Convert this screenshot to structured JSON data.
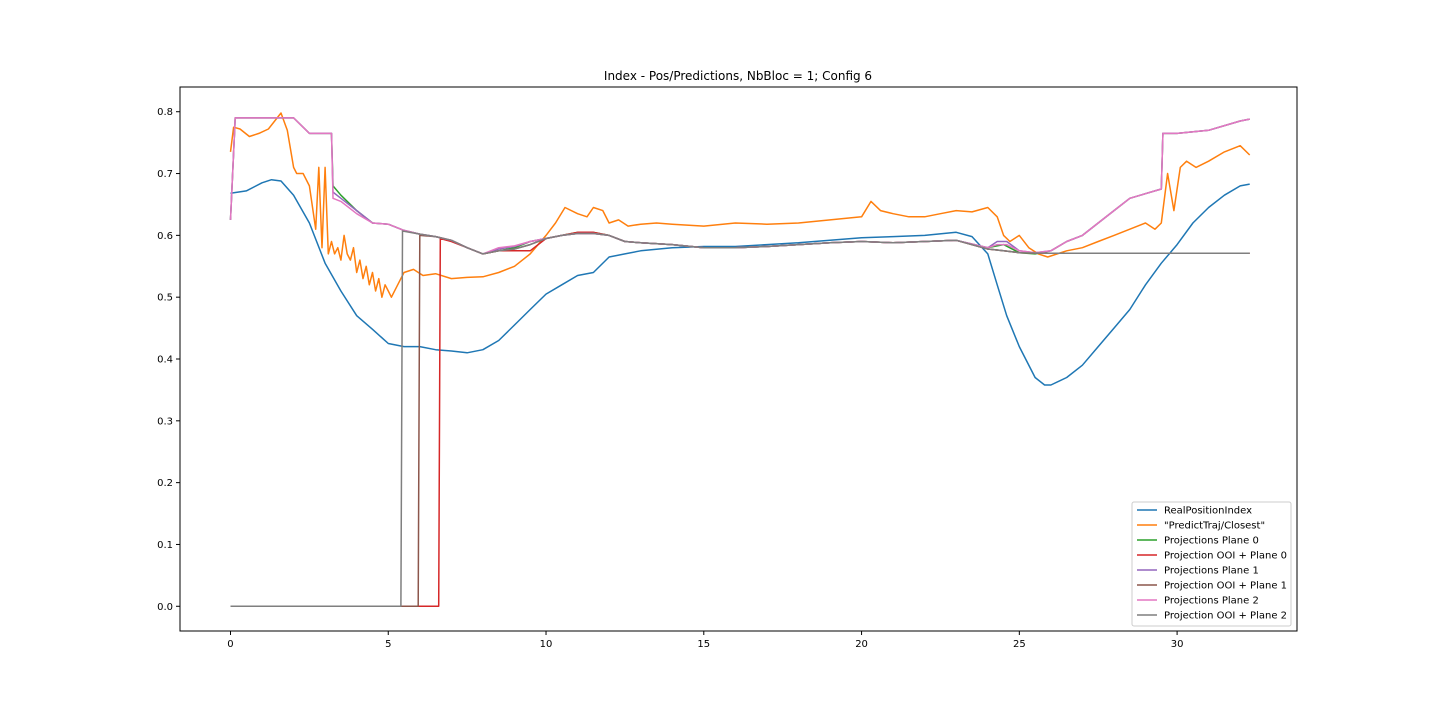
{
  "chart_data": {
    "type": "line",
    "title": "Index - Pos/Predictions, NbBloc = 1; Config 6",
    "xlabel": "",
    "ylabel": "",
    "xlim": [
      -1.6,
      33.8
    ],
    "ylim": [
      -0.04,
      0.84
    ],
    "xticks": [
      0,
      5,
      10,
      15,
      20,
      25,
      30
    ],
    "yticks": [
      0.0,
      0.1,
      0.2,
      0.3,
      0.4,
      0.5,
      0.6,
      0.7,
      0.8
    ],
    "xtick_labels": [
      "0",
      "5",
      "10",
      "15",
      "20",
      "25",
      "30"
    ],
    "ytick_labels": [
      "0.0",
      "0.1",
      "0.2",
      "0.3",
      "0.4",
      "0.5",
      "0.6",
      "0.7",
      "0.8"
    ],
    "grid": false,
    "legend_position": "lower-right",
    "series": [
      {
        "name": "RealPositionIndex",
        "color": "#1f77b4",
        "x": [
          0,
          0.5,
          1,
          1.3,
          1.6,
          2,
          2.5,
          3,
          3.5,
          4,
          4.5,
          5,
          5.5,
          6,
          6.5,
          7,
          7.5,
          8,
          8.5,
          9,
          9.5,
          10,
          10.5,
          11,
          11.5,
          12,
          12.5,
          13,
          14,
          15,
          16,
          17,
          18,
          19,
          20,
          21,
          22,
          23,
          23.5,
          24,
          24.3,
          24.6,
          25,
          25.5,
          25.8,
          26,
          26.5,
          27,
          27.5,
          28,
          28.5,
          29,
          29.5,
          30,
          30.5,
          31,
          31.5,
          32,
          32.3
        ],
        "y": [
          0.668,
          0.672,
          0.685,
          0.69,
          0.688,
          0.665,
          0.62,
          0.555,
          0.51,
          0.47,
          0.448,
          0.425,
          0.42,
          0.42,
          0.415,
          0.413,
          0.41,
          0.415,
          0.43,
          0.455,
          0.48,
          0.505,
          0.52,
          0.535,
          0.54,
          0.565,
          0.57,
          0.575,
          0.58,
          0.582,
          0.582,
          0.585,
          0.588,
          0.592,
          0.596,
          0.598,
          0.6,
          0.605,
          0.598,
          0.57,
          0.52,
          0.47,
          0.42,
          0.37,
          0.358,
          0.358,
          0.37,
          0.39,
          0.42,
          0.45,
          0.48,
          0.52,
          0.555,
          0.585,
          0.62,
          0.645,
          0.665,
          0.68,
          0.683
        ]
      },
      {
        "name": "\"PredictTraj/Closest\"",
        "color": "#ff7f0e",
        "x": [
          0,
          0.1,
          0.3,
          0.6,
          0.9,
          1.2,
          1.4,
          1.6,
          1.8,
          2.0,
          2.1,
          2.3,
          2.5,
          2.7,
          2.8,
          2.9,
          3.0,
          3.1,
          3.2,
          3.3,
          3.4,
          3.5,
          3.6,
          3.7,
          3.8,
          3.9,
          4.0,
          4.1,
          4.2,
          4.3,
          4.4,
          4.5,
          4.6,
          4.7,
          4.8,
          4.9,
          5.0,
          5.1,
          5.3,
          5.5,
          5.8,
          6.1,
          6.5,
          7.0,
          7.5,
          8.0,
          8.5,
          9.0,
          9.5,
          10.0,
          10.3,
          10.6,
          11.0,
          11.3,
          11.5,
          11.8,
          12.0,
          12.3,
          12.6,
          13.0,
          13.5,
          14,
          15,
          16,
          17,
          18,
          19,
          20,
          20.3,
          20.6,
          21,
          21.5,
          22,
          22.5,
          23,
          23.5,
          24,
          24.3,
          24.5,
          24.7,
          25.0,
          25.3,
          25.6,
          25.9,
          26.2,
          26.5,
          27,
          27.5,
          28,
          28.5,
          29,
          29.3,
          29.5,
          29.7,
          29.9,
          30.1,
          30.3,
          30.6,
          31,
          31.5,
          32,
          32.3
        ],
        "y": [
          0.735,
          0.775,
          0.772,
          0.76,
          0.765,
          0.772,
          0.785,
          0.798,
          0.77,
          0.71,
          0.7,
          0.7,
          0.68,
          0.61,
          0.71,
          0.58,
          0.71,
          0.57,
          0.59,
          0.57,
          0.58,
          0.56,
          0.6,
          0.57,
          0.56,
          0.58,
          0.54,
          0.56,
          0.53,
          0.55,
          0.52,
          0.54,
          0.51,
          0.53,
          0.5,
          0.52,
          0.51,
          0.5,
          0.52,
          0.54,
          0.545,
          0.535,
          0.538,
          0.53,
          0.532,
          0.533,
          0.54,
          0.55,
          0.57,
          0.6,
          0.62,
          0.645,
          0.635,
          0.63,
          0.645,
          0.64,
          0.62,
          0.625,
          0.615,
          0.618,
          0.62,
          0.618,
          0.615,
          0.62,
          0.618,
          0.62,
          0.625,
          0.63,
          0.655,
          0.64,
          0.635,
          0.63,
          0.63,
          0.635,
          0.64,
          0.638,
          0.645,
          0.63,
          0.6,
          0.59,
          0.6,
          0.58,
          0.57,
          0.565,
          0.57,
          0.575,
          0.58,
          0.59,
          0.6,
          0.61,
          0.62,
          0.61,
          0.62,
          0.7,
          0.64,
          0.71,
          0.72,
          0.71,
          0.72,
          0.735,
          0.745,
          0.73
        ]
      },
      {
        "name": "Projections Plane 0",
        "color": "#2ca02c",
        "x": [
          0,
          0.15,
          1.0,
          2.0,
          2.5,
          3.2,
          3.25,
          3.5,
          4,
          4.5,
          5,
          5.5,
          6,
          6.5,
          7,
          7.5,
          8,
          8.5,
          9,
          9.5,
          10,
          10.5,
          11,
          11.5,
          12,
          12.5,
          13,
          14,
          15,
          16,
          17,
          18,
          19,
          20,
          21,
          22,
          23,
          24,
          24.5,
          25,
          25.5,
          26,
          26.5,
          27,
          27.5,
          28,
          28.5,
          29.5,
          29.55,
          30,
          31,
          32,
          32.3
        ],
        "y": [
          0.625,
          0.79,
          0.79,
          0.79,
          0.765,
          0.765,
          0.68,
          0.665,
          0.64,
          0.62,
          0.618,
          0.608,
          0.602,
          0.598,
          0.592,
          0.58,
          0.57,
          0.575,
          0.58,
          0.59,
          0.595,
          0.6,
          0.605,
          0.605,
          0.6,
          0.59,
          0.588,
          0.585,
          0.58,
          0.58,
          0.582,
          0.585,
          0.588,
          0.59,
          0.588,
          0.59,
          0.592,
          0.58,
          0.585,
          0.572,
          0.57,
          0.575,
          0.59,
          0.6,
          0.62,
          0.64,
          0.66,
          0.675,
          0.765,
          0.765,
          0.77,
          0.785,
          0.788
        ]
      },
      {
        "name": "Projection OOI + Plane 0",
        "color": "#d62728",
        "x": [
          0,
          6.6,
          6.65,
          7,
          7.5,
          8,
          8.5,
          9,
          9.5,
          10,
          10.5,
          11,
          11.5,
          12,
          12.5,
          13,
          14,
          15,
          16,
          17,
          18,
          19,
          20,
          21,
          22,
          23,
          24,
          24.5,
          25,
          26,
          27,
          28,
          29,
          30,
          31,
          32,
          32.3
        ],
        "y": [
          0.0,
          0.0,
          0.595,
          0.59,
          0.58,
          0.57,
          0.575,
          0.575,
          0.575,
          0.595,
          0.6,
          0.605,
          0.605,
          0.6,
          0.59,
          0.588,
          0.585,
          0.58,
          0.58,
          0.582,
          0.585,
          0.588,
          0.59,
          0.588,
          0.59,
          0.592,
          0.578,
          0.575,
          0.572,
          0.571,
          0.571,
          0.571,
          0.571,
          0.571,
          0.571,
          0.571,
          0.571
        ]
      },
      {
        "name": "Projections Plane 1",
        "color": "#9467bd",
        "x": [
          0,
          0.15,
          1.0,
          2.0,
          2.5,
          3.2,
          3.25,
          3.5,
          4,
          4.5,
          5,
          5.5,
          6,
          6.5,
          7,
          7.5,
          8,
          8.5,
          9,
          9.5,
          10,
          10.5,
          11,
          11.5,
          12,
          12.5,
          13,
          14,
          15,
          16,
          17,
          18,
          19,
          20,
          21,
          22,
          23,
          24,
          24.3,
          24.6,
          25,
          25.5,
          26,
          26.5,
          27,
          27.5,
          28,
          28.5,
          29.5,
          29.55,
          30,
          31,
          32,
          32.3
        ],
        "y": [
          0.625,
          0.79,
          0.79,
          0.79,
          0.765,
          0.765,
          0.67,
          0.66,
          0.64,
          0.62,
          0.618,
          0.608,
          0.602,
          0.598,
          0.592,
          0.58,
          0.57,
          0.578,
          0.582,
          0.59,
          0.595,
          0.6,
          0.603,
          0.603,
          0.6,
          0.59,
          0.588,
          0.585,
          0.58,
          0.58,
          0.582,
          0.585,
          0.588,
          0.59,
          0.588,
          0.59,
          0.592,
          0.58,
          0.59,
          0.59,
          0.575,
          0.572,
          0.575,
          0.59,
          0.6,
          0.62,
          0.64,
          0.66,
          0.675,
          0.765,
          0.765,
          0.77,
          0.785,
          0.788
        ]
      },
      {
        "name": "Projection OOI + Plane 1",
        "color": "#8c564b",
        "x": [
          0,
          5.95,
          6.0,
          6.5,
          7,
          7.5,
          8,
          8.5,
          9,
          9.5,
          10,
          10.5,
          11,
          11.5,
          12,
          12.5,
          13,
          14,
          15,
          16,
          17,
          18,
          19,
          20,
          21,
          22,
          23,
          24,
          24.5,
          25,
          26,
          27,
          28,
          29,
          30,
          31,
          32,
          32.3
        ],
        "y": [
          0.0,
          0.0,
          0.6,
          0.598,
          0.592,
          0.58,
          0.57,
          0.575,
          0.578,
          0.585,
          0.595,
          0.6,
          0.603,
          0.603,
          0.6,
          0.59,
          0.588,
          0.585,
          0.58,
          0.58,
          0.582,
          0.585,
          0.588,
          0.59,
          0.588,
          0.59,
          0.592,
          0.578,
          0.575,
          0.572,
          0.571,
          0.571,
          0.571,
          0.571,
          0.571,
          0.571,
          0.571,
          0.571
        ]
      },
      {
        "name": "Projections Plane 2",
        "color": "#e377c2",
        "x": [
          0,
          0.15,
          1.0,
          2.0,
          2.5,
          3.2,
          3.25,
          3.5,
          4,
          4.5,
          5,
          5.5,
          6,
          6.5,
          7,
          7.5,
          8,
          8.5,
          9,
          9.5,
          10,
          10.5,
          11,
          11.5,
          12,
          12.5,
          13,
          14,
          15,
          16,
          17,
          18,
          19,
          20,
          21,
          22,
          23,
          24,
          24.3,
          24.6,
          25,
          25.5,
          26,
          26.5,
          27,
          27.5,
          28,
          28.5,
          29.5,
          29.55,
          30,
          31,
          32,
          32.3
        ],
        "y": [
          0.625,
          0.79,
          0.79,
          0.79,
          0.765,
          0.765,
          0.66,
          0.655,
          0.635,
          0.62,
          0.618,
          0.608,
          0.602,
          0.598,
          0.592,
          0.58,
          0.57,
          0.58,
          0.583,
          0.59,
          0.595,
          0.6,
          0.603,
          0.603,
          0.6,
          0.59,
          0.588,
          0.585,
          0.58,
          0.58,
          0.582,
          0.585,
          0.588,
          0.59,
          0.588,
          0.59,
          0.592,
          0.58,
          0.585,
          0.585,
          0.575,
          0.572,
          0.575,
          0.59,
          0.6,
          0.62,
          0.64,
          0.66,
          0.675,
          0.765,
          0.765,
          0.77,
          0.785,
          0.788
        ]
      },
      {
        "name": "Projection OOI + Plane 2",
        "color": "#7f7f7f",
        "x": [
          0,
          5.4,
          5.45,
          6,
          6.5,
          7,
          7.5,
          8,
          8.5,
          9,
          9.5,
          10,
          10.5,
          11,
          11.5,
          12,
          12.5,
          13,
          14,
          15,
          16,
          17,
          18,
          19,
          20,
          21,
          22,
          23,
          24,
          24.5,
          25,
          26,
          27,
          28,
          29,
          30,
          31,
          32,
          32.3
        ],
        "y": [
          0.0,
          0.0,
          0.607,
          0.602,
          0.598,
          0.592,
          0.58,
          0.57,
          0.575,
          0.578,
          0.585,
          0.595,
          0.6,
          0.603,
          0.603,
          0.6,
          0.59,
          0.588,
          0.585,
          0.58,
          0.58,
          0.582,
          0.585,
          0.588,
          0.59,
          0.588,
          0.59,
          0.592,
          0.578,
          0.575,
          0.572,
          0.571,
          0.571,
          0.571,
          0.571,
          0.571,
          0.571,
          0.571,
          0.571
        ]
      }
    ]
  }
}
